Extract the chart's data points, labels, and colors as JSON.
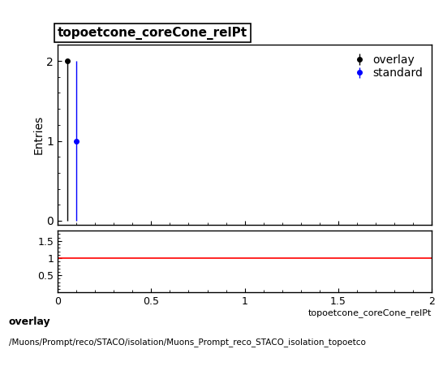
{
  "title": "topoetcone_coreCone_relPt",
  "xlabel": "topoetcone_coreCone_relPt",
  "ylabel_main": "Entries",
  "xlim": [
    0,
    2
  ],
  "ylim_main": [
    -0.05,
    2.2
  ],
  "ylim_ratio": [
    0,
    1.8
  ],
  "ratio_yticks": [
    0.5,
    1,
    1.5
  ],
  "ratio_yticklabels": [
    "0.5",
    "1",
    "1.5"
  ],
  "overlay_points_x": [
    0.05
  ],
  "overlay_points_y": [
    2
  ],
  "overlay_yerr_lo": [
    2.0
  ],
  "overlay_yerr_hi": [
    0.0
  ],
  "overlay_color": "#000000",
  "overlay_label": "overlay",
  "standard_points_x": [
    0.1
  ],
  "standard_points_y": [
    1
  ],
  "standard_yerr_lo": [
    1.0
  ],
  "standard_yerr_hi": [
    1.0
  ],
  "standard_color": "#0000ff",
  "standard_label": "standard",
  "ratio_value": 1.0,
  "ratio_color": "#ff0000",
  "bottom_label1": "overlay",
  "bottom_label2": "/Muons/Prompt/reco/STACO/isolation/Muons_Prompt_reco_STACO_isolation_topoetco",
  "xticks": [
    0,
    0.5,
    1,
    1.5,
    2
  ],
  "main_yticks": [
    0,
    1,
    2
  ],
  "background_color": "#ffffff"
}
